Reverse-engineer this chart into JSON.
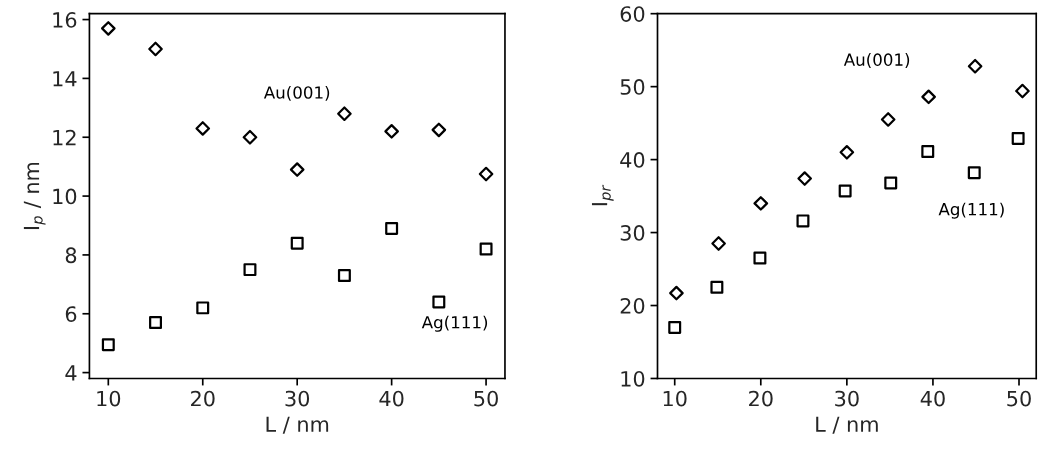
{
  "chart_data": [
    {
      "type": "scatter",
      "xlabel": "L / nm",
      "ylabel": "I$_{p}$ / nm",
      "xlim": [
        8,
        52
      ],
      "xticks": [
        10,
        20,
        30,
        40,
        50
      ],
      "ylim": [
        3.8,
        16.2
      ],
      "yticks": [
        4,
        6,
        8,
        10,
        12,
        14,
        16
      ],
      "grid": false,
      "legend": false,
      "series": [
        {
          "name": "Au(001)",
          "color": "#000000",
          "marker": "diamond",
          "x": [
            10,
            15,
            20,
            25,
            30,
            35,
            40,
            45,
            50
          ],
          "values": [
            15.7,
            15.0,
            12.3,
            12.0,
            10.9,
            12.8,
            12.2,
            12.25,
            10.75
          ]
        },
        {
          "name": "Ag(111)",
          "color": "#000000",
          "marker": "square",
          "x": [
            10,
            15,
            20,
            25,
            30,
            35,
            40,
            45,
            50
          ],
          "values": [
            4.95,
            5.7,
            6.2,
            7.5,
            8.4,
            7.3,
            8.9,
            6.4,
            8.2
          ]
        }
      ]
    },
    {
      "type": "scatter",
      "xlabel": "L / nm",
      "ylabel": "I$_{pr}$",
      "xlim": [
        8,
        52
      ],
      "xticks": [
        10,
        20,
        30,
        40,
        50
      ],
      "ylim": [
        10,
        60
      ],
      "yticks": [
        10,
        20,
        30,
        40,
        50,
        60
      ],
      "grid": false,
      "legend": false,
      "series": [
        {
          "name": "Au(001)",
          "color": "#000000",
          "marker": "diamond",
          "x": [
            10.2,
            15.1,
            20,
            25.1,
            30,
            34.8,
            39.5,
            44.9,
            50.4
          ],
          "values": [
            21.7,
            28.5,
            34.0,
            37.4,
            41.0,
            45.5,
            48.6,
            52.8,
            49.4
          ]
        },
        {
          "name": "Ag(111)",
          "color": "#000000",
          "marker": "square",
          "x": [
            10,
            14.9,
            19.9,
            24.9,
            29.8,
            35.1,
            39.4,
            44.8,
            49.9
          ],
          "values": [
            17.0,
            22.5,
            26.5,
            31.6,
            35.7,
            36.8,
            41.1,
            38.2,
            42.9
          ]
        }
      ]
    }
  ]
}
